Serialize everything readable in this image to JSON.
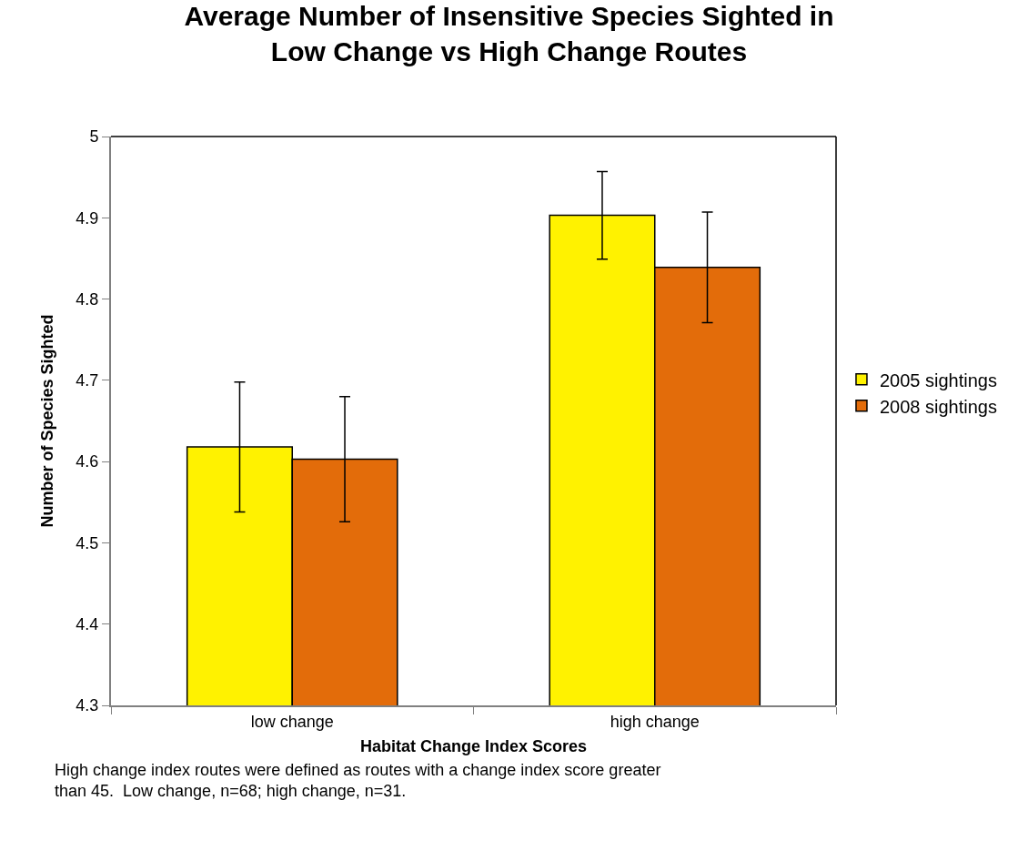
{
  "chart_data": {
    "type": "bar",
    "title": "Average Number of Insensitive Species Sighted in\nLow Change vs High Change Routes",
    "xlabel": "Habitat Change Index Scores",
    "ylabel": "Number of Species Sighted",
    "categories": [
      "low change",
      "high change"
    ],
    "series": [
      {
        "name": "2005 sightings",
        "color": "#fff200",
        "values": [
          4.618,
          4.903
        ],
        "errors": [
          0.08,
          0.054
        ]
      },
      {
        "name": "2008 sightings",
        "color": "#e36c0a",
        "values": [
          4.603,
          4.839
        ],
        "errors": [
          0.077,
          0.068
        ]
      }
    ],
    "ylim": [
      4.3,
      5
    ],
    "yticks": [
      4.3,
      4.4,
      4.5,
      4.6,
      4.7,
      4.8,
      4.9,
      5
    ],
    "legend": "right",
    "annotations": [
      "High change index routes were defined as routes with a change index score greater\nthan 45.  Low change, n=68; high change, n=31."
    ]
  }
}
